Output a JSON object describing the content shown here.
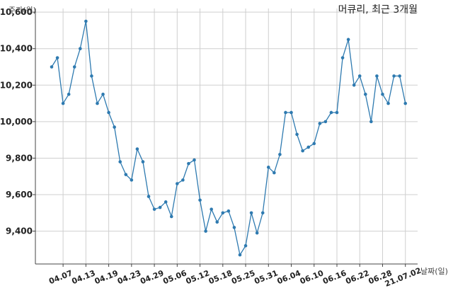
{
  "chart_data": {
    "type": "line",
    "title": "머큐리, 최근 3개월",
    "ylabel": "주가(원)",
    "xlabel": "날짜(일)",
    "ylim": [
      9220,
      10620
    ],
    "yticks": [
      9400,
      9600,
      9800,
      10000,
      10200,
      10400,
      10600
    ],
    "ytick_labels": [
      "9,400",
      "9,600",
      "9,800",
      "10,000",
      "10,200",
      "10,400",
      "10,600"
    ],
    "xticks": [
      {
        "index": 2,
        "label": "04.07"
      },
      {
        "index": 6,
        "label": "04.13"
      },
      {
        "index": 10,
        "label": "04.19"
      },
      {
        "index": 14,
        "label": "04.23"
      },
      {
        "index": 18,
        "label": "04.29"
      },
      {
        "index": 22,
        "label": "05.06"
      },
      {
        "index": 26,
        "label": "05.12"
      },
      {
        "index": 30,
        "label": "05.18"
      },
      {
        "index": 34,
        "label": "05.25"
      },
      {
        "index": 38,
        "label": "05.31"
      },
      {
        "index": 42,
        "label": "06.04"
      },
      {
        "index": 46,
        "label": "06.10"
      },
      {
        "index": 50,
        "label": "06.16"
      },
      {
        "index": 54,
        "label": "06.22"
      },
      {
        "index": 58,
        "label": "06.28"
      },
      {
        "index": 62,
        "label": "21.07.02"
      }
    ],
    "grid": true,
    "series": [
      {
        "color": "#2e7ab0",
        "values": [
          10300,
          10350,
          10100,
          10150,
          10300,
          10400,
          10550,
          10250,
          10100,
          10150,
          10050,
          9970,
          9780,
          9710,
          9680,
          9850,
          9780,
          9590,
          9520,
          9530,
          9560,
          9480,
          9660,
          9680,
          9770,
          9790,
          9570,
          9400,
          9520,
          9450,
          9500,
          9510,
          9420,
          9270,
          9320,
          9500,
          9390,
          9500,
          9750,
          9720,
          9820,
          10050,
          10050,
          9930,
          9840,
          9860,
          9880,
          9990,
          10000,
          10050,
          10050,
          10350,
          10450,
          10200,
          10250,
          10150,
          10000,
          10250,
          10150,
          10100,
          10250,
          10250,
          10100
        ]
      }
    ]
  }
}
